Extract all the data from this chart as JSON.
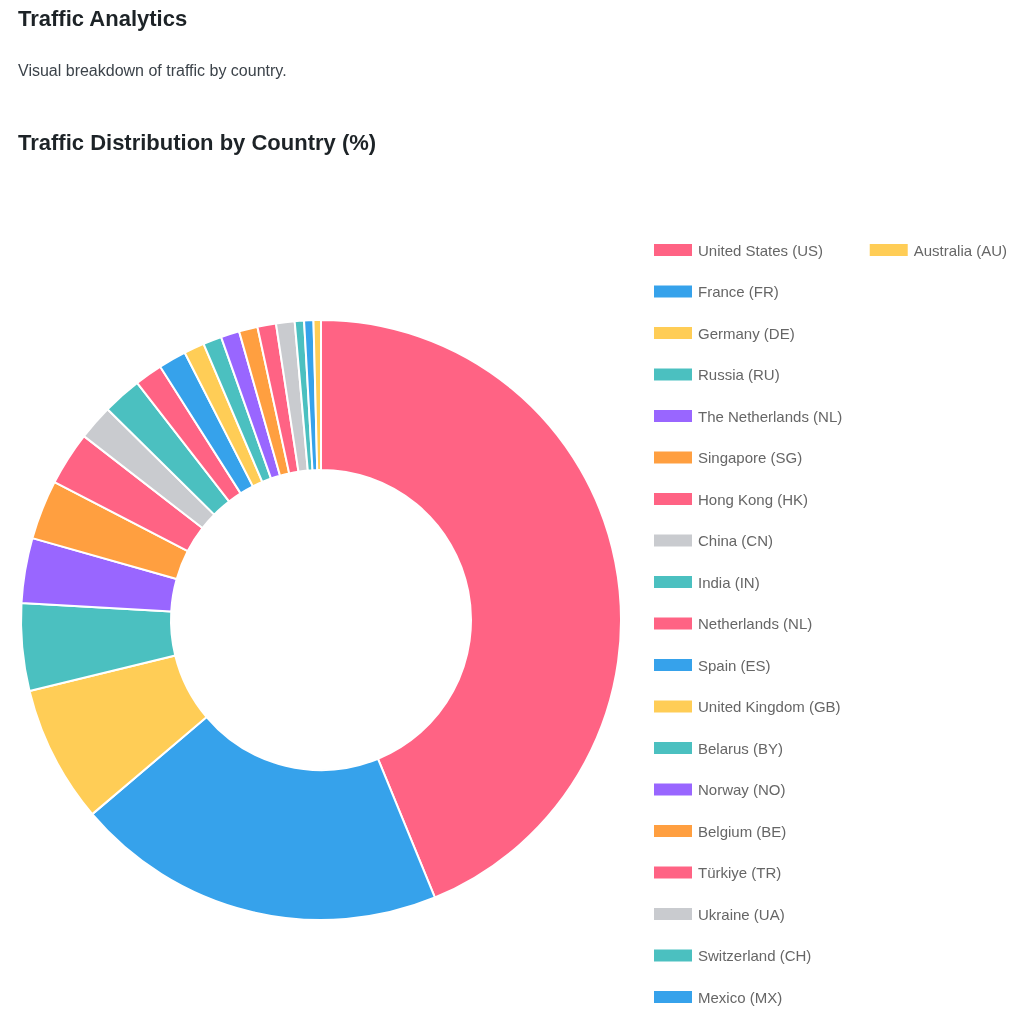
{
  "chart_data": {
    "type": "donut",
    "title": "Traffic Distribution by Country (%)",
    "annotations": [
      "Traffic Analytics",
      "Visual breakdown of traffic by country."
    ],
    "categories": [
      "United States (US)",
      "France (FR)",
      "Germany (DE)",
      "Russia (RU)",
      "The Netherlands (NL)",
      "Singapore (SG)",
      "Hong Kong (HK)",
      "China (CN)",
      "India (IN)",
      "Netherlands (NL)",
      "Spain (ES)",
      "United Kingdom (GB)",
      "Belarus (BY)",
      "Norway (NO)",
      "Belgium (BE)",
      "Türkiye (TR)",
      "Ukraine (UA)",
      "Switzerland (CH)",
      "Mexico (MX)",
      "Australia (AU)"
    ],
    "values": [
      43.8,
      20,
      7.4,
      4.7,
      3.5,
      3.2,
      2.9,
      1.9,
      2.1,
      1.5,
      1.5,
      1.1,
      1.0,
      1.0,
      1.0,
      1.0,
      1.0,
      0.5,
      0.5,
      0.4
    ],
    "colors": [
      "#ff6384",
      "#36a2eb",
      "#ffcd56",
      "#4bc0c0",
      "#9966ff",
      "#ff9f40",
      "#ff6384",
      "#c9cbcf",
      "#4bc0c0",
      "#ff6384",
      "#36a2eb",
      "#ffcd56",
      "#4bc0c0",
      "#9966ff",
      "#ff9f40",
      "#ff6384",
      "#c9cbcf",
      "#4bc0c0",
      "#36a2eb",
      "#ffcd56"
    ],
    "legend": "right"
  }
}
